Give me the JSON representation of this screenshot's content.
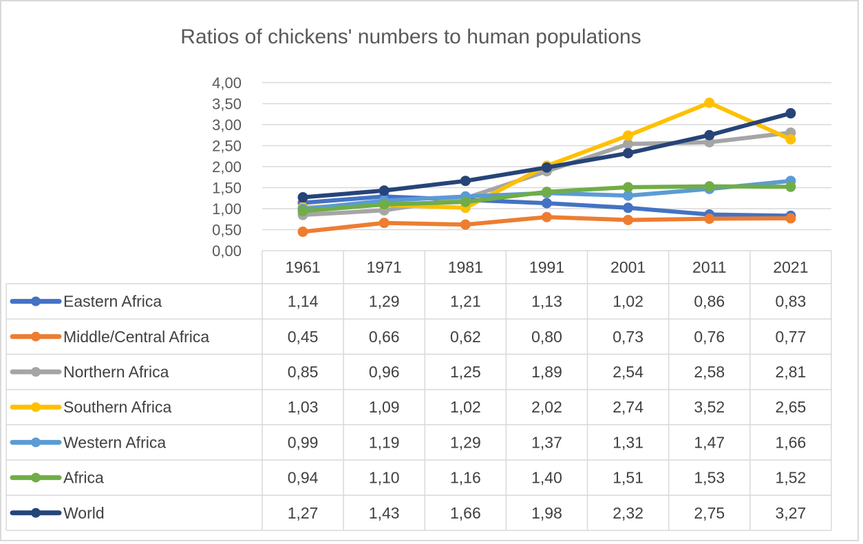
{
  "chart_data": {
    "type": "line",
    "title": "Ratios of chickens' numbers  to human populations",
    "categories": [
      "1961",
      "1971",
      "1981",
      "1991",
      "2001",
      "2011",
      "2021"
    ],
    "ylim": [
      0,
      4
    ],
    "yticks": [
      "0,00",
      "0,50",
      "1,00",
      "1,50",
      "2,00",
      "2,50",
      "3,00",
      "3,50",
      "4,00"
    ],
    "grid": true,
    "legend": "data-table",
    "series": [
      {
        "name": "Eastern Africa",
        "color": "#4472c4",
        "values": [
          1.14,
          1.29,
          1.21,
          1.13,
          1.02,
          0.86,
          0.83
        ],
        "labels": [
          "1,14",
          "1,29",
          "1,21",
          "1,13",
          "1,02",
          "0,86",
          "0,83"
        ]
      },
      {
        "name": "Middle/Central Africa",
        "color": "#ed7d31",
        "values": [
          0.45,
          0.66,
          0.62,
          0.8,
          0.73,
          0.76,
          0.77
        ],
        "labels": [
          "0,45",
          "0,66",
          "0,62",
          "0,80",
          "0,73",
          "0,76",
          "0,77"
        ]
      },
      {
        "name": "Northern Africa",
        "color": "#a5a5a5",
        "values": [
          0.85,
          0.96,
          1.25,
          1.89,
          2.54,
          2.58,
          2.81
        ],
        "labels": [
          "0,85",
          "0,96",
          "1,25",
          "1,89",
          "2,54",
          "2,58",
          "2,81"
        ]
      },
      {
        "name": "Southern Africa",
        "color": "#ffc000",
        "values": [
          1.03,
          1.09,
          1.02,
          2.02,
          2.74,
          3.52,
          2.65
        ],
        "labels": [
          "1,03",
          "1,09",
          "1,02",
          "2,02",
          "2,74",
          "3,52",
          "2,65"
        ]
      },
      {
        "name": "Western Africa",
        "color": "#5b9bd5",
        "values": [
          0.99,
          1.19,
          1.29,
          1.37,
          1.31,
          1.47,
          1.66
        ],
        "labels": [
          "0,99",
          "1,19",
          "1,29",
          "1,37",
          "1,31",
          "1,47",
          "1,66"
        ]
      },
      {
        "name": "Africa",
        "color": "#70ad47",
        "values": [
          0.94,
          1.1,
          1.16,
          1.4,
          1.51,
          1.53,
          1.52
        ],
        "labels": [
          "0,94",
          "1,10",
          "1,16",
          "1,40",
          "1,51",
          "1,53",
          "1,52"
        ]
      },
      {
        "name": "World",
        "color": "#264478",
        "values": [
          1.27,
          1.43,
          1.66,
          1.98,
          2.32,
          2.75,
          3.27
        ],
        "labels": [
          "1,27",
          "1,43",
          "1,66",
          "1,98",
          "2,32",
          "2,75",
          "3,27"
        ]
      }
    ]
  }
}
